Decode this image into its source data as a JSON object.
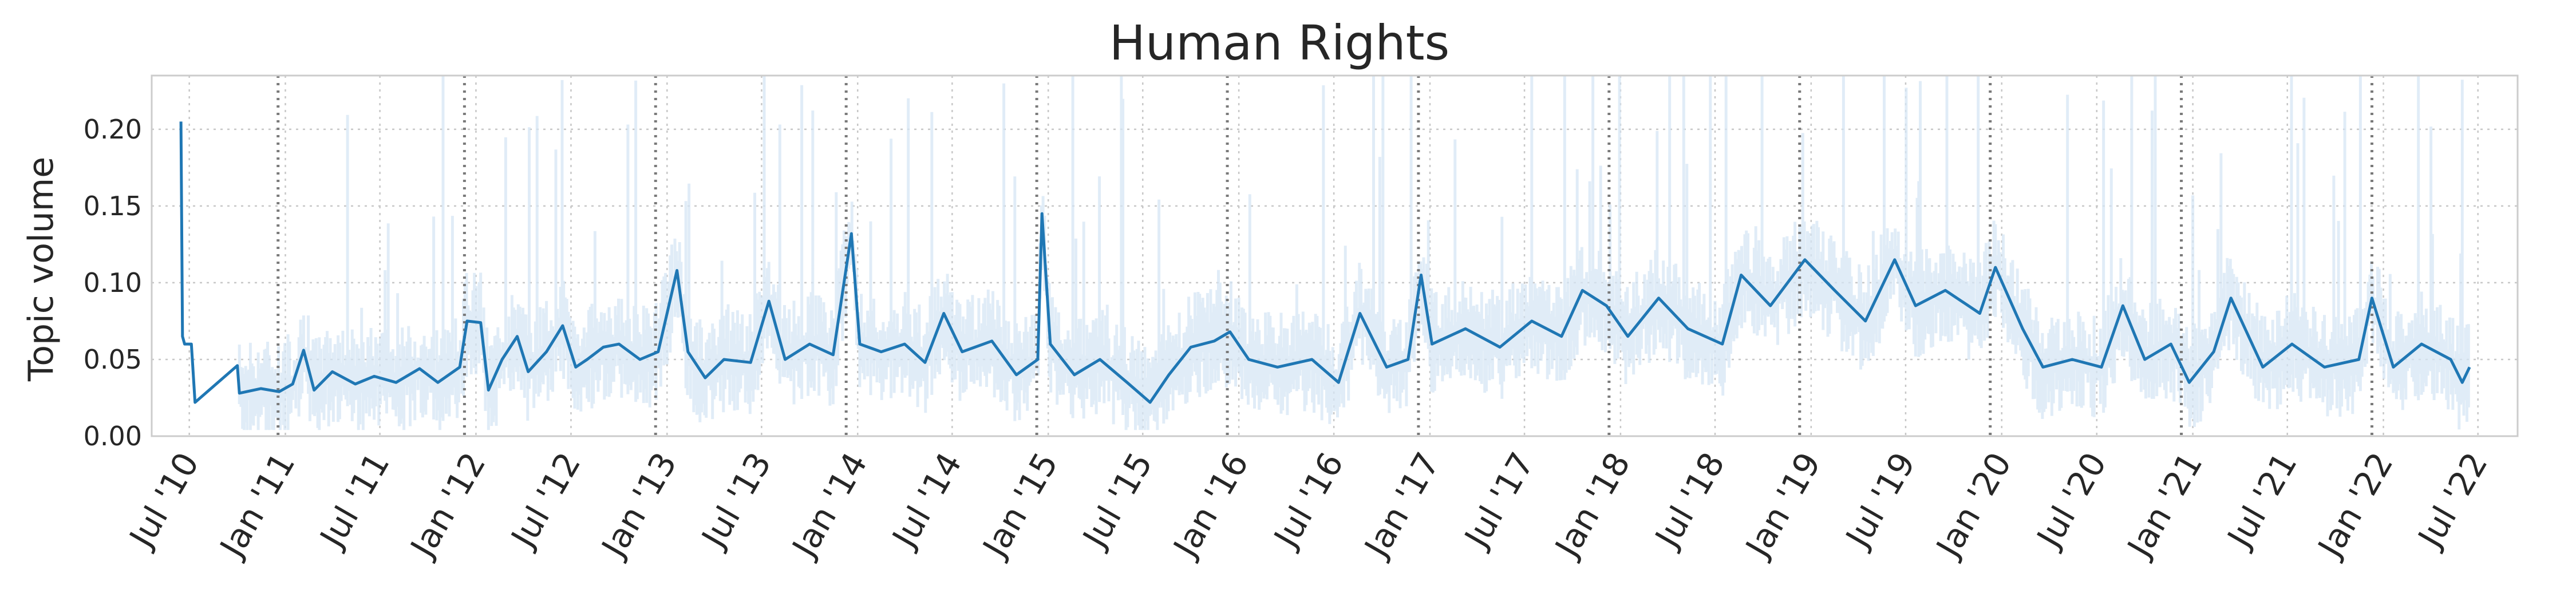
{
  "chart_data": {
    "type": "line",
    "title": "Human Rights",
    "xlabel": "",
    "ylabel": "Topic volume",
    "ylim": [
      0,
      0.235
    ],
    "yticks": [
      "0.00",
      "0.05",
      "0.10",
      "0.15",
      "0.20"
    ],
    "xlim": [
      "2010-04-20",
      "2022-09-15"
    ],
    "xticks": [
      "Jul '10",
      "Jan '11",
      "Jul '11",
      "Jan '12",
      "Jul '12",
      "Jan '13",
      "Jul '13",
      "Jan '14",
      "Jul '14",
      "Jan '15",
      "Jul '15",
      "Jan '16",
      "Jul '16",
      "Jan '17",
      "Jul '17",
      "Jan '18",
      "Jul '18",
      "Jan '19",
      "Jul '19",
      "Jan '20",
      "Jul '20",
      "Jan '21",
      "Jul '21",
      "Jan '22",
      "Jul '22"
    ],
    "grid": true,
    "event_markers": [
      "2010-12-18",
      "2011-12-10",
      "2012-12-10",
      "2013-12-10",
      "2014-12-10",
      "2015-12-10",
      "2016-12-10",
      "2017-12-10",
      "2018-12-10",
      "2019-12-10",
      "2020-12-10",
      "2021-12-10"
    ],
    "series": [
      {
        "style": "smoothed line",
        "color": "#1f77b4",
        "points": [
          [
            "2010-06-15",
            0.205
          ],
          [
            "2010-06-18",
            0.065
          ],
          [
            "2010-06-22",
            0.06
          ],
          [
            "2010-07-05",
            0.06
          ],
          [
            "2010-07-12",
            0.022
          ],
          [
            "2010-10-01",
            0.046
          ],
          [
            "2010-10-05",
            0.028
          ],
          [
            "2010-11-15",
            0.031
          ],
          [
            "2010-12-20",
            0.029
          ],
          [
            "2011-01-15",
            0.034
          ],
          [
            "2011-02-05",
            0.056
          ],
          [
            "2011-02-25",
            0.03
          ],
          [
            "2011-04-01",
            0.042
          ],
          [
            "2011-05-15",
            0.034
          ],
          [
            "2011-06-20",
            0.039
          ],
          [
            "2011-08-01",
            0.035
          ],
          [
            "2011-09-15",
            0.044
          ],
          [
            "2011-10-20",
            0.035
          ],
          [
            "2011-12-01",
            0.045
          ],
          [
            "2011-12-15",
            0.075
          ],
          [
            "2012-01-10",
            0.074
          ],
          [
            "2012-01-25",
            0.03
          ],
          [
            "2012-02-20",
            0.05
          ],
          [
            "2012-03-20",
            0.065
          ],
          [
            "2012-04-10",
            0.042
          ],
          [
            "2012-05-15",
            0.055
          ],
          [
            "2012-06-15",
            0.072
          ],
          [
            "2012-07-10",
            0.045
          ],
          [
            "2012-08-01",
            0.05
          ],
          [
            "2012-09-01",
            0.058
          ],
          [
            "2012-10-01",
            0.06
          ],
          [
            "2012-11-10",
            0.05
          ],
          [
            "2012-12-15",
            0.055
          ],
          [
            "2013-01-20",
            0.108
          ],
          [
            "2013-02-10",
            0.055
          ],
          [
            "2013-03-15",
            0.038
          ],
          [
            "2013-04-20",
            0.05
          ],
          [
            "2013-06-10",
            0.048
          ],
          [
            "2013-07-15",
            0.088
          ],
          [
            "2013-08-15",
            0.05
          ],
          [
            "2013-10-01",
            0.06
          ],
          [
            "2013-11-15",
            0.053
          ],
          [
            "2013-12-20",
            0.132
          ],
          [
            "2014-01-05",
            0.06
          ],
          [
            "2014-02-15",
            0.055
          ],
          [
            "2014-04-01",
            0.06
          ],
          [
            "2014-05-10",
            0.048
          ],
          [
            "2014-06-15",
            0.08
          ],
          [
            "2014-07-20",
            0.055
          ],
          [
            "2014-09-15",
            0.062
          ],
          [
            "2014-11-01",
            0.04
          ],
          [
            "2014-12-12",
            0.05
          ],
          [
            "2014-12-20",
            0.145
          ],
          [
            "2015-01-05",
            0.06
          ],
          [
            "2015-02-20",
            0.04
          ],
          [
            "2015-04-10",
            0.05
          ],
          [
            "2015-06-01",
            0.035
          ],
          [
            "2015-07-15",
            0.022
          ],
          [
            "2015-08-20",
            0.04
          ],
          [
            "2015-10-01",
            0.058
          ],
          [
            "2015-11-15",
            0.062
          ],
          [
            "2015-12-15",
            0.068
          ],
          [
            "2016-01-20",
            0.05
          ],
          [
            "2016-03-15",
            0.045
          ],
          [
            "2016-05-20",
            0.05
          ],
          [
            "2016-07-10",
            0.035
          ],
          [
            "2016-08-20",
            0.08
          ],
          [
            "2016-10-10",
            0.045
          ],
          [
            "2016-11-20",
            0.05
          ],
          [
            "2016-12-15",
            0.105
          ],
          [
            "2017-01-05",
            0.06
          ],
          [
            "2017-03-10",
            0.07
          ],
          [
            "2017-05-15",
            0.058
          ],
          [
            "2017-07-15",
            0.075
          ],
          [
            "2017-09-10",
            0.065
          ],
          [
            "2017-10-20",
            0.095
          ],
          [
            "2017-12-05",
            0.085
          ],
          [
            "2018-01-15",
            0.065
          ],
          [
            "2018-03-15",
            0.09
          ],
          [
            "2018-05-10",
            0.07
          ],
          [
            "2018-07-15",
            0.06
          ],
          [
            "2018-08-20",
            0.105
          ],
          [
            "2018-10-15",
            0.085
          ],
          [
            "2018-12-20",
            0.115
          ],
          [
            "2019-02-15",
            0.095
          ],
          [
            "2019-04-15",
            0.075
          ],
          [
            "2019-06-10",
            0.115
          ],
          [
            "2019-07-20",
            0.085
          ],
          [
            "2019-09-15",
            0.095
          ],
          [
            "2019-11-20",
            0.08
          ],
          [
            "2019-12-20",
            0.11
          ],
          [
            "2020-02-10",
            0.07
          ],
          [
            "2020-03-20",
            0.045
          ],
          [
            "2020-05-15",
            0.05
          ],
          [
            "2020-07-10",
            0.045
          ],
          [
            "2020-08-20",
            0.085
          ],
          [
            "2020-10-01",
            0.05
          ],
          [
            "2020-11-20",
            0.06
          ],
          [
            "2020-12-25",
            0.035
          ],
          [
            "2021-02-10",
            0.055
          ],
          [
            "2021-03-15",
            0.09
          ],
          [
            "2021-05-15",
            0.045
          ],
          [
            "2021-07-10",
            0.06
          ],
          [
            "2021-09-10",
            0.045
          ],
          [
            "2021-11-15",
            0.05
          ],
          [
            "2021-12-10",
            0.09
          ],
          [
            "2022-01-20",
            0.045
          ],
          [
            "2022-03-15",
            0.06
          ],
          [
            "2022-05-10",
            0.05
          ],
          [
            "2022-06-01",
            0.035
          ],
          [
            "2022-06-15",
            0.045
          ]
        ]
      },
      {
        "style": "raw daily values (faint)",
        "color": "#d6e6f4",
        "points": []
      }
    ]
  }
}
